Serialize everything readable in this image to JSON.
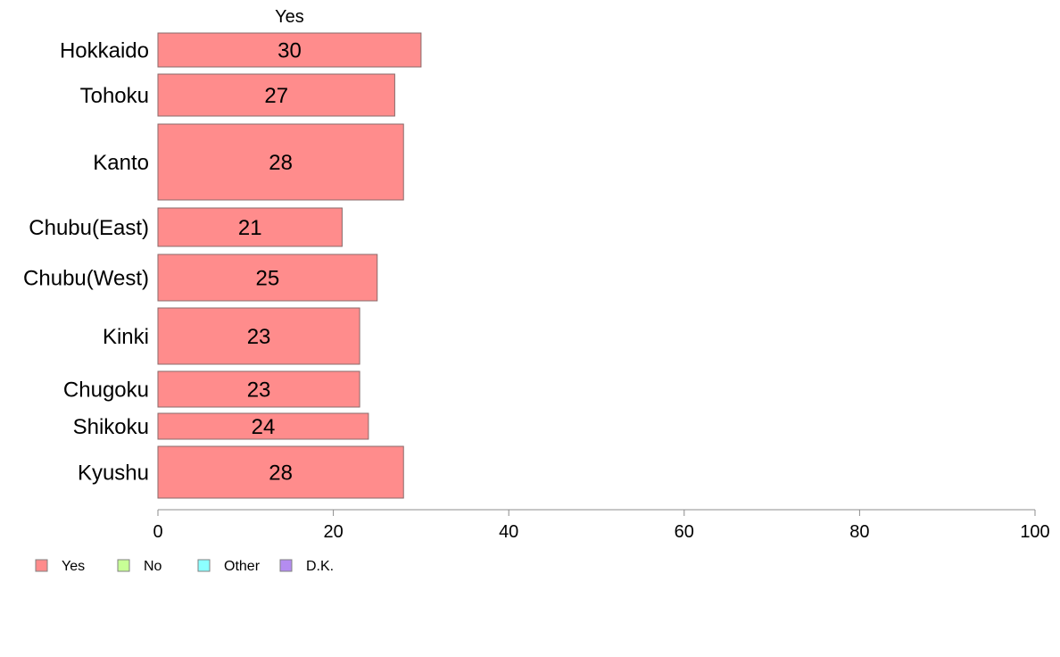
{
  "chart_data": {
    "type": "bar",
    "orientation": "horizontal",
    "stacked": true,
    "column_header": "Yes",
    "categories": [
      "Hokkaido",
      "Tohoku",
      "Kanto",
      "Chubu(East)",
      "Chubu(West)",
      "Kinki",
      "Chugoku",
      "Shikoku",
      "Kyushu"
    ],
    "series": [
      {
        "name": "Yes",
        "color": "#FF8C8C",
        "values": [
          30,
          27,
          28,
          21,
          25,
          23,
          23,
          24,
          28
        ]
      }
    ],
    "data_labels": [
      "30",
      "27",
      "28",
      "21",
      "25",
      "23",
      "23",
      "24",
      "28"
    ],
    "legend": [
      {
        "label": "Yes",
        "color": "#FF8C8C"
      },
      {
        "label": "No",
        "color": "#C8FF96"
      },
      {
        "label": "Other",
        "color": "#8CFFFF"
      },
      {
        "label": "D.K.",
        "color": "#B48CF0"
      }
    ],
    "legend_position": "bottom-left",
    "xlim": [
      0,
      100
    ],
    "xticks": [
      "0",
      "20",
      "40",
      "60",
      "80",
      "100"
    ],
    "grid": false
  }
}
